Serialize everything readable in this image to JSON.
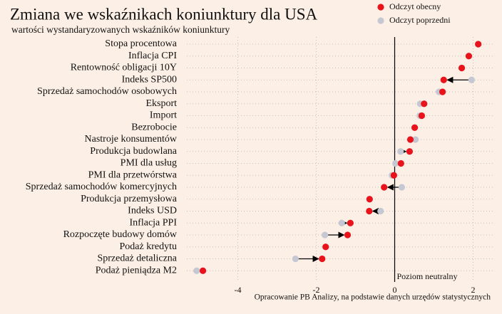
{
  "chart_data": {
    "type": "dot",
    "title": "Zmiana we wskaźnikach koniunktury dla USA",
    "subtitle": "wartości wystandaryzowanych wskaźników koniunktury",
    "annotation": "Poziom neutralny",
    "source": "Opracowanie PB Analizy, na podstawie danych urzędów statystycznych",
    "categories": [
      "Stopa procentowa",
      "Inflacja CPI",
      "Rentowność obligacji 10Y",
      "Indeks SP500",
      "Sprzedaż samochodów osobowych",
      "Eksport",
      "Import",
      "Bezrobocie",
      "Nastroje konsumentów",
      "Produkcja budowlana",
      "PMI dla usług",
      "PMI dla przetwórstwa",
      "Sprzedaż samochodów komercyjnych",
      "Produkcja przemysłowa",
      "Indeks USD",
      "Inflacja PPI",
      "Rozpoczęte budowy domów",
      "Podaż kredytu",
      "Sprzedaż detaliczna",
      "Podaż pieniądza M2"
    ],
    "series": [
      {
        "name": "Odczyt poprzedni",
        "color": "#c5c8d2",
        "values": [
          2.13,
          1.89,
          1.71,
          1.96,
          1.13,
          0.65,
          0.64,
          0.51,
          0.53,
          0.15,
          0.02,
          -0.07,
          0.18,
          -0.64,
          -0.36,
          -1.35,
          -1.78,
          -1.76,
          -2.53,
          -5.05
        ]
      },
      {
        "name": "Odczyt obecny",
        "color": "#e8131b",
        "values": [
          2.13,
          1.89,
          1.71,
          1.25,
          1.22,
          0.75,
          0.69,
          0.51,
          0.4,
          0.38,
          0.16,
          -0.02,
          -0.27,
          -0.64,
          -0.65,
          -1.13,
          -1.2,
          -1.76,
          -1.85,
          -4.89
        ]
      }
    ],
    "xlim": [
      -5.3,
      2.5
    ],
    "xticks": [
      -4,
      -2,
      0,
      2
    ],
    "grid": true
  }
}
